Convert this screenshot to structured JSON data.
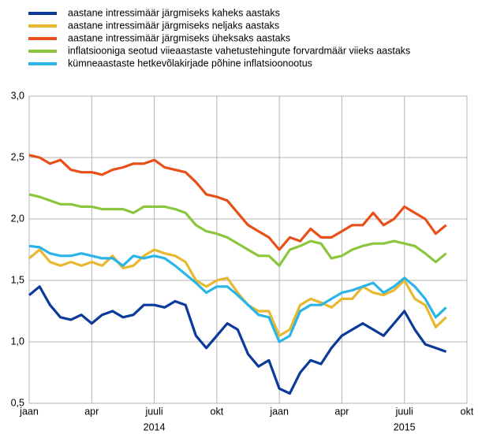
{
  "chart_data": {
    "type": "line",
    "series": [
      {
        "name": "aastane intressimäär järgmiseks kaheks aastaks",
        "color": "#0b3a9a",
        "values": [
          1.38,
          1.45,
          1.3,
          1.2,
          1.18,
          1.22,
          1.15,
          1.22,
          1.25,
          1.2,
          1.22,
          1.3,
          1.3,
          1.28,
          1.33,
          1.3,
          1.05,
          0.95,
          1.05,
          1.15,
          1.1,
          0.9,
          0.8,
          0.85,
          0.62,
          0.58,
          0.75,
          0.85,
          0.82,
          0.95,
          1.05,
          1.1,
          1.15,
          1.1,
          1.05,
          1.15,
          1.25,
          1.1,
          0.98,
          0.95,
          0.92
        ]
      },
      {
        "name": "aastane intressimäär järgmiseks neljaks aastaks",
        "color": "#e8b830",
        "values": [
          1.68,
          1.75,
          1.65,
          1.62,
          1.65,
          1.62,
          1.65,
          1.62,
          1.7,
          1.6,
          1.62,
          1.7,
          1.75,
          1.72,
          1.7,
          1.65,
          1.5,
          1.45,
          1.5,
          1.52,
          1.4,
          1.3,
          1.25,
          1.25,
          1.05,
          1.1,
          1.3,
          1.35,
          1.32,
          1.28,
          1.35,
          1.35,
          1.45,
          1.4,
          1.38,
          1.42,
          1.5,
          1.35,
          1.3,
          1.12,
          1.2
        ]
      },
      {
        "name": "aastane intressimäär järgmiseks üheksaks aastaks",
        "color": "#e8501a",
        "values": [
          2.52,
          2.5,
          2.45,
          2.48,
          2.4,
          2.38,
          2.38,
          2.36,
          2.4,
          2.42,
          2.45,
          2.45,
          2.48,
          2.42,
          2.4,
          2.38,
          2.3,
          2.2,
          2.18,
          2.15,
          2.05,
          1.95,
          1.9,
          1.85,
          1.75,
          1.85,
          1.82,
          1.92,
          1.85,
          1.85,
          1.9,
          1.95,
          1.95,
          2.05,
          1.95,
          2.0,
          2.1,
          2.05,
          2.0,
          1.88,
          1.95
        ]
      },
      {
        "name": "inflatsiooniga seotud viieaastaste vahetustehingute forvardmäär viieks aastaks",
        "color": "#8cc63e",
        "values": [
          2.2,
          2.18,
          2.15,
          2.12,
          2.12,
          2.1,
          2.1,
          2.08,
          2.08,
          2.08,
          2.05,
          2.1,
          2.1,
          2.1,
          2.08,
          2.05,
          1.95,
          1.9,
          1.88,
          1.85,
          1.8,
          1.75,
          1.7,
          1.7,
          1.62,
          1.75,
          1.78,
          1.82,
          1.8,
          1.68,
          1.7,
          1.75,
          1.78,
          1.8,
          1.8,
          1.82,
          1.8,
          1.78,
          1.72,
          1.65,
          1.72
        ]
      },
      {
        "name": "kümneaastaste hetkevõlakirjade põhine inflatsioonootus",
        "color": "#2ab4e8",
        "values": [
          1.78,
          1.77,
          1.72,
          1.7,
          1.7,
          1.72,
          1.7,
          1.68,
          1.68,
          1.62,
          1.7,
          1.68,
          1.7,
          1.68,
          1.62,
          1.55,
          1.48,
          1.4,
          1.45,
          1.45,
          1.38,
          1.3,
          1.22,
          1.2,
          1.0,
          1.05,
          1.25,
          1.3,
          1.3,
          1.35,
          1.4,
          1.42,
          1.45,
          1.48,
          1.4,
          1.45,
          1.52,
          1.45,
          1.35,
          1.2,
          1.28
        ]
      }
    ],
    "x": [
      0,
      0.5,
      1,
      1.5,
      2,
      2.5,
      3,
      3.5,
      4,
      4.5,
      5,
      5.5,
      6,
      6.5,
      7,
      7.5,
      8,
      8.5,
      9,
      9.5,
      10,
      10.5,
      11,
      11.5,
      12,
      12.5,
      13,
      13.5,
      14,
      14.5,
      15,
      15.5,
      16,
      16.5,
      17,
      17.5,
      18,
      18.5,
      19,
      19.5,
      20
    ],
    "xlim": [
      0,
      21
    ],
    "xticks": [
      {
        "value": 0,
        "label": "jaan"
      },
      {
        "value": 3,
        "label": "apr"
      },
      {
        "value": 6,
        "label": "juuli"
      },
      {
        "value": 9,
        "label": "okt"
      },
      {
        "value": 12,
        "label": "jaan"
      },
      {
        "value": 15,
        "label": "apr"
      },
      {
        "value": 18,
        "label": "juuli"
      },
      {
        "value": 21,
        "label": "okt"
      }
    ],
    "xgroups": [
      {
        "value": 6,
        "label": "2014"
      },
      {
        "value": 18,
        "label": "2015"
      }
    ],
    "ylim": [
      0.5,
      3.0
    ],
    "yticks": [
      {
        "value": 0.5,
        "label": "0,5"
      },
      {
        "value": 1.0,
        "label": "1,0"
      },
      {
        "value": 1.5,
        "label": "1,5"
      },
      {
        "value": 2.0,
        "label": "2,0"
      },
      {
        "value": 2.5,
        "label": "2,5"
      },
      {
        "value": 3.0,
        "label": "3,0"
      }
    ],
    "grid": true
  }
}
